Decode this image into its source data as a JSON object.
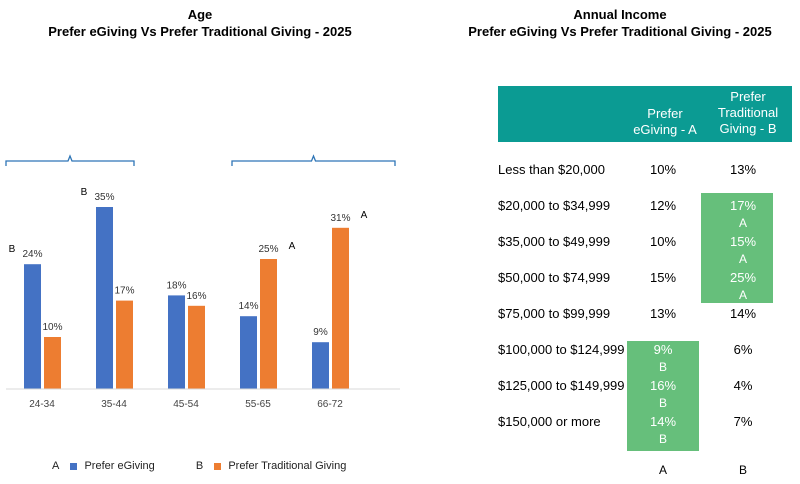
{
  "chart_data": [
    {
      "type": "bar",
      "title": "Age",
      "subtitle": "Prefer eGiving Vs Prefer Traditional Giving - 2025",
      "categories": [
        "24-34",
        "35-44",
        "45-54",
        "55-65",
        "66-72"
      ],
      "series": [
        {
          "name": "Prefer eGiving",
          "values": [
            24,
            35,
            18,
            14,
            9
          ],
          "value_labels": [
            "24%",
            "35%",
            "18%",
            "14%",
            "9%"
          ],
          "color": "#4472c4"
        },
        {
          "name": "Prefer Traditional Giving",
          "values": [
            10,
            17,
            16,
            25,
            31
          ],
          "value_labels": [
            "10%",
            "17%",
            "16%",
            "25%",
            "31%"
          ],
          "color": "#ed7d31"
        }
      ],
      "significance": [
        {
          "category": "24-34",
          "mark": "B"
        },
        {
          "category": "35-44",
          "mark": "B"
        },
        {
          "category": "55-65",
          "mark": "A"
        },
        {
          "category": "66-72",
          "mark": "A"
        }
      ],
      "ylim": [
        0,
        45
      ],
      "grid": false,
      "legend": {
        "position": "bottom",
        "items": [
          {
            "code": "A",
            "label": "Prefer eGiving"
          },
          {
            "code": "B",
            "label": "Prefer Traditional Giving"
          }
        ]
      }
    },
    {
      "type": "table",
      "title": "Annual Income",
      "subtitle": "Prefer eGiving Vs Prefer Traditional Giving - 2025",
      "columns": [
        {
          "label": "Prefer eGiving - A",
          "lines": [
            "Prefer",
            "eGiving - A"
          ],
          "code": "A"
        },
        {
          "label": "Prefer Traditional Giving - B",
          "lines": [
            "Prefer",
            "Traditional",
            "Giving - B"
          ],
          "code": "B"
        }
      ],
      "rows": [
        {
          "label": "Less than $20,000",
          "a": "10%",
          "b": "13%",
          "a_sig": "",
          "b_sig": ""
        },
        {
          "label": "$20,000 to $34,999",
          "a": "12%",
          "b": "17%",
          "a_sig": "",
          "b_sig": "A"
        },
        {
          "label": "$35,000 to $49,999",
          "a": "10%",
          "b": "15%",
          "a_sig": "",
          "b_sig": "A"
        },
        {
          "label": "$50,000 to $74,999",
          "a": "15%",
          "b": "25%",
          "a_sig": "",
          "b_sig": "A"
        },
        {
          "label": "$75,000 to $99,999",
          "a": "13%",
          "b": "14%",
          "a_sig": "",
          "b_sig": ""
        },
        {
          "label": "$100,000 to $124,999",
          "a": "9%",
          "b": "6%",
          "a_sig": "B",
          "b_sig": ""
        },
        {
          "label": "$125,000 to $149,999",
          "a": "16%",
          "b": "4%",
          "a_sig": "B",
          "b_sig": ""
        },
        {
          "label": "$150,000 or more",
          "a": "14%",
          "b": "7%",
          "a_sig": "B",
          "b_sig": ""
        }
      ],
      "highlight_color": "#66bf7b",
      "header_color": "#0b9b93",
      "footer": [
        "A",
        "B"
      ]
    }
  ]
}
